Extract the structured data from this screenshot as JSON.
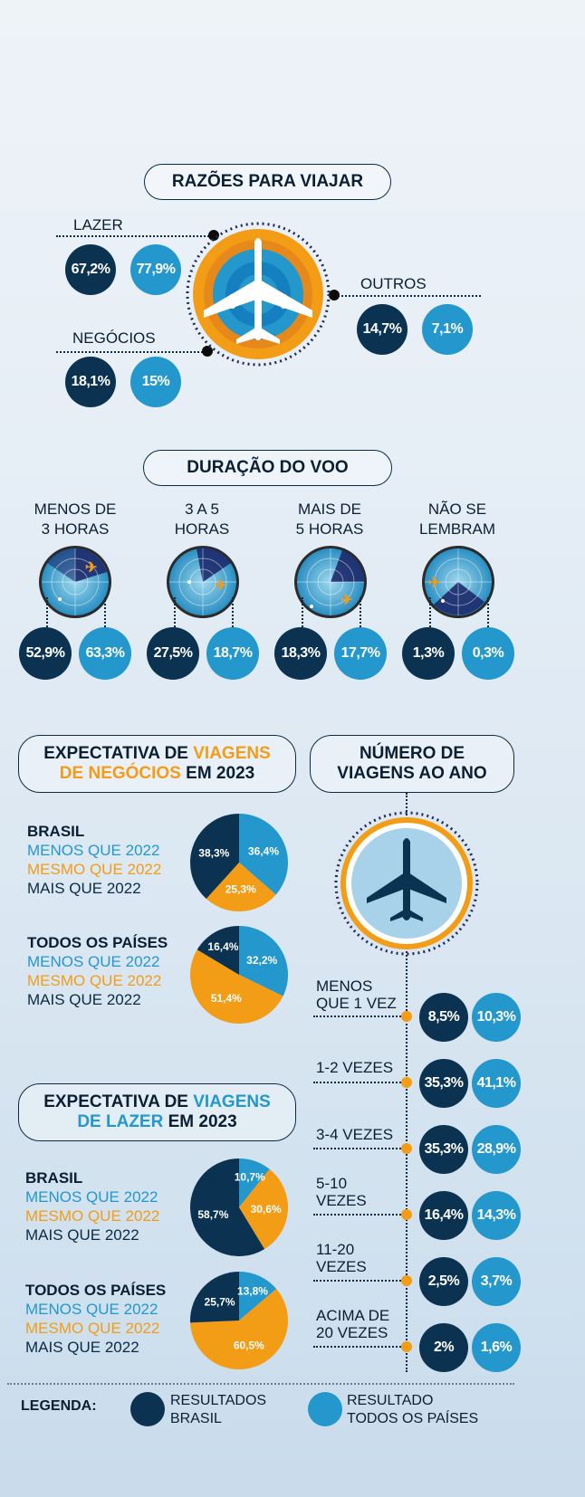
{
  "colors": {
    "brasil": "#0b3351",
    "todos": "#2497cd",
    "orange": "#f39c16",
    "navy": "#0b2b45"
  },
  "razoes": {
    "title": "RAZÕES PARA VIAJAR",
    "lazer": {
      "label": "LAZER",
      "brasil": "67,2%",
      "todos": "77,9%"
    },
    "negocios": {
      "label": "NEGÓCIOS",
      "brasil": "18,1%",
      "todos": "15%"
    },
    "outros": {
      "label": "OUTROS",
      "brasil": "14,7%",
      "todos": "7,1%"
    }
  },
  "duracao": {
    "title": "DURAÇÃO DO VOO",
    "items": [
      {
        "line1": "MENOS DE",
        "line2": "3 HORAS",
        "brasil": "52,9%",
        "todos": "63,3%"
      },
      {
        "line1": "3 A 5",
        "line2": "HORAS",
        "brasil": "27,5%",
        "todos": "18,7%"
      },
      {
        "line1": "MAIS DE",
        "line2": "5 HORAS",
        "brasil": "18,3%",
        "todos": "17,7%"
      },
      {
        "line1": "NÃO SE",
        "line2": "LEMBRAM",
        "brasil": "1,3%",
        "todos": "0,3%"
      }
    ]
  },
  "negocios2023": {
    "t1": "EXPECTATIVA DE ",
    "t2": "VIAGENS",
    "t3": "DE NEGÓCIOS",
    "t4": " EM 2023",
    "brasil": {
      "head": "BRASIL",
      "menos": "MENOS QUE 2022",
      "mesmo": "MESMO QUE 2022",
      "mais": "MAIS QUE 2022"
    },
    "todos": {
      "head": "TODOS OS PAÍSES",
      "menos": "MENOS QUE 2022",
      "mesmo": "MESMO QUE 2022",
      "mais": "MAIS QUE 2022"
    }
  },
  "lazer2023": {
    "t1": "EXPECTATIVA DE ",
    "t2": "VIAGENS",
    "t3": "DE LAZER",
    "t4": " EM 2023",
    "brasil": {
      "head": "BRASIL",
      "menos": "MENOS QUE 2022",
      "mesmo": "MESMO QUE 2022",
      "mais": "MAIS QUE 2022"
    },
    "todos": {
      "head": "TODOS OS PAÍSES",
      "menos": "MENOS QUE 2022",
      "mesmo": "MESMO QUE 2022",
      "mais": "MAIS QUE 2022"
    }
  },
  "numero": {
    "t1": "NÚMERO DE",
    "t2": "VIAGENS AO ANO",
    "rows": [
      {
        "line1": "MENOS",
        "line2": "QUE 1 VEZ",
        "brasil": "8,5%",
        "todos": "10,3%"
      },
      {
        "line1": "1-2 VEZES",
        "line2": "",
        "brasil": "35,3%",
        "todos": "41,1%"
      },
      {
        "line1": "3-4 VEZES",
        "line2": "",
        "brasil": "35,3%",
        "todos": "28,9%"
      },
      {
        "line1": "5-10",
        "line2": "VEZES",
        "brasil": "16,4%",
        "todos": "14,3%"
      },
      {
        "line1": "11-20",
        "line2": "VEZES",
        "brasil": "2,5%",
        "todos": "3,7%"
      },
      {
        "line1": "ACIMA DE",
        "line2": "20 VEZES",
        "brasil": "2%",
        "todos": "1,6%"
      }
    ]
  },
  "legenda": {
    "label": "LEGENDA:",
    "brasil_1": "RESULTADOS",
    "brasil_2": "BRASIL",
    "todos_1": "RESULTADO",
    "todos_2": "TODOS OS PAÍSES"
  },
  "chart_data": [
    {
      "type": "pie",
      "id": "negocios-brasil",
      "labels": [
        "36,4%",
        "25,3%",
        "38,3%"
      ],
      "categories": [
        "MENOS QUE 2022",
        "MESMO QUE 2022",
        "MAIS QUE 2022"
      ],
      "values": [
        36.4,
        25.3,
        38.3
      ],
      "colors": [
        "#2497cd",
        "#f39c16",
        "#0b3351"
      ]
    },
    {
      "type": "pie",
      "id": "negocios-todos",
      "labels": [
        "32,2%",
        "51,4%",
        "16,4%"
      ],
      "categories": [
        "MENOS QUE 2022",
        "MESMO QUE 2022",
        "MAIS QUE 2022"
      ],
      "values": [
        32.2,
        51.4,
        16.4
      ],
      "colors": [
        "#2497cd",
        "#f39c16",
        "#0b3351"
      ]
    },
    {
      "type": "pie",
      "id": "lazer-brasil",
      "labels": [
        "10,7%",
        "30,6%",
        "58,7%"
      ],
      "categories": [
        "MENOS QUE 2022",
        "MESMO QUE 2022",
        "MAIS QUE 2022"
      ],
      "values": [
        10.7,
        30.6,
        58.7
      ],
      "colors": [
        "#2497cd",
        "#f39c16",
        "#0b3351"
      ]
    },
    {
      "type": "pie",
      "id": "lazer-todos",
      "labels": [
        "13,8%",
        "60,5%",
        "25,7%"
      ],
      "categories": [
        "MENOS QUE 2022",
        "MESMO QUE 2022",
        "MAIS QUE 2022"
      ],
      "values": [
        13.8,
        60.5,
        25.7
      ],
      "colors": [
        "#2497cd",
        "#f39c16",
        "#0b3351"
      ]
    }
  ]
}
